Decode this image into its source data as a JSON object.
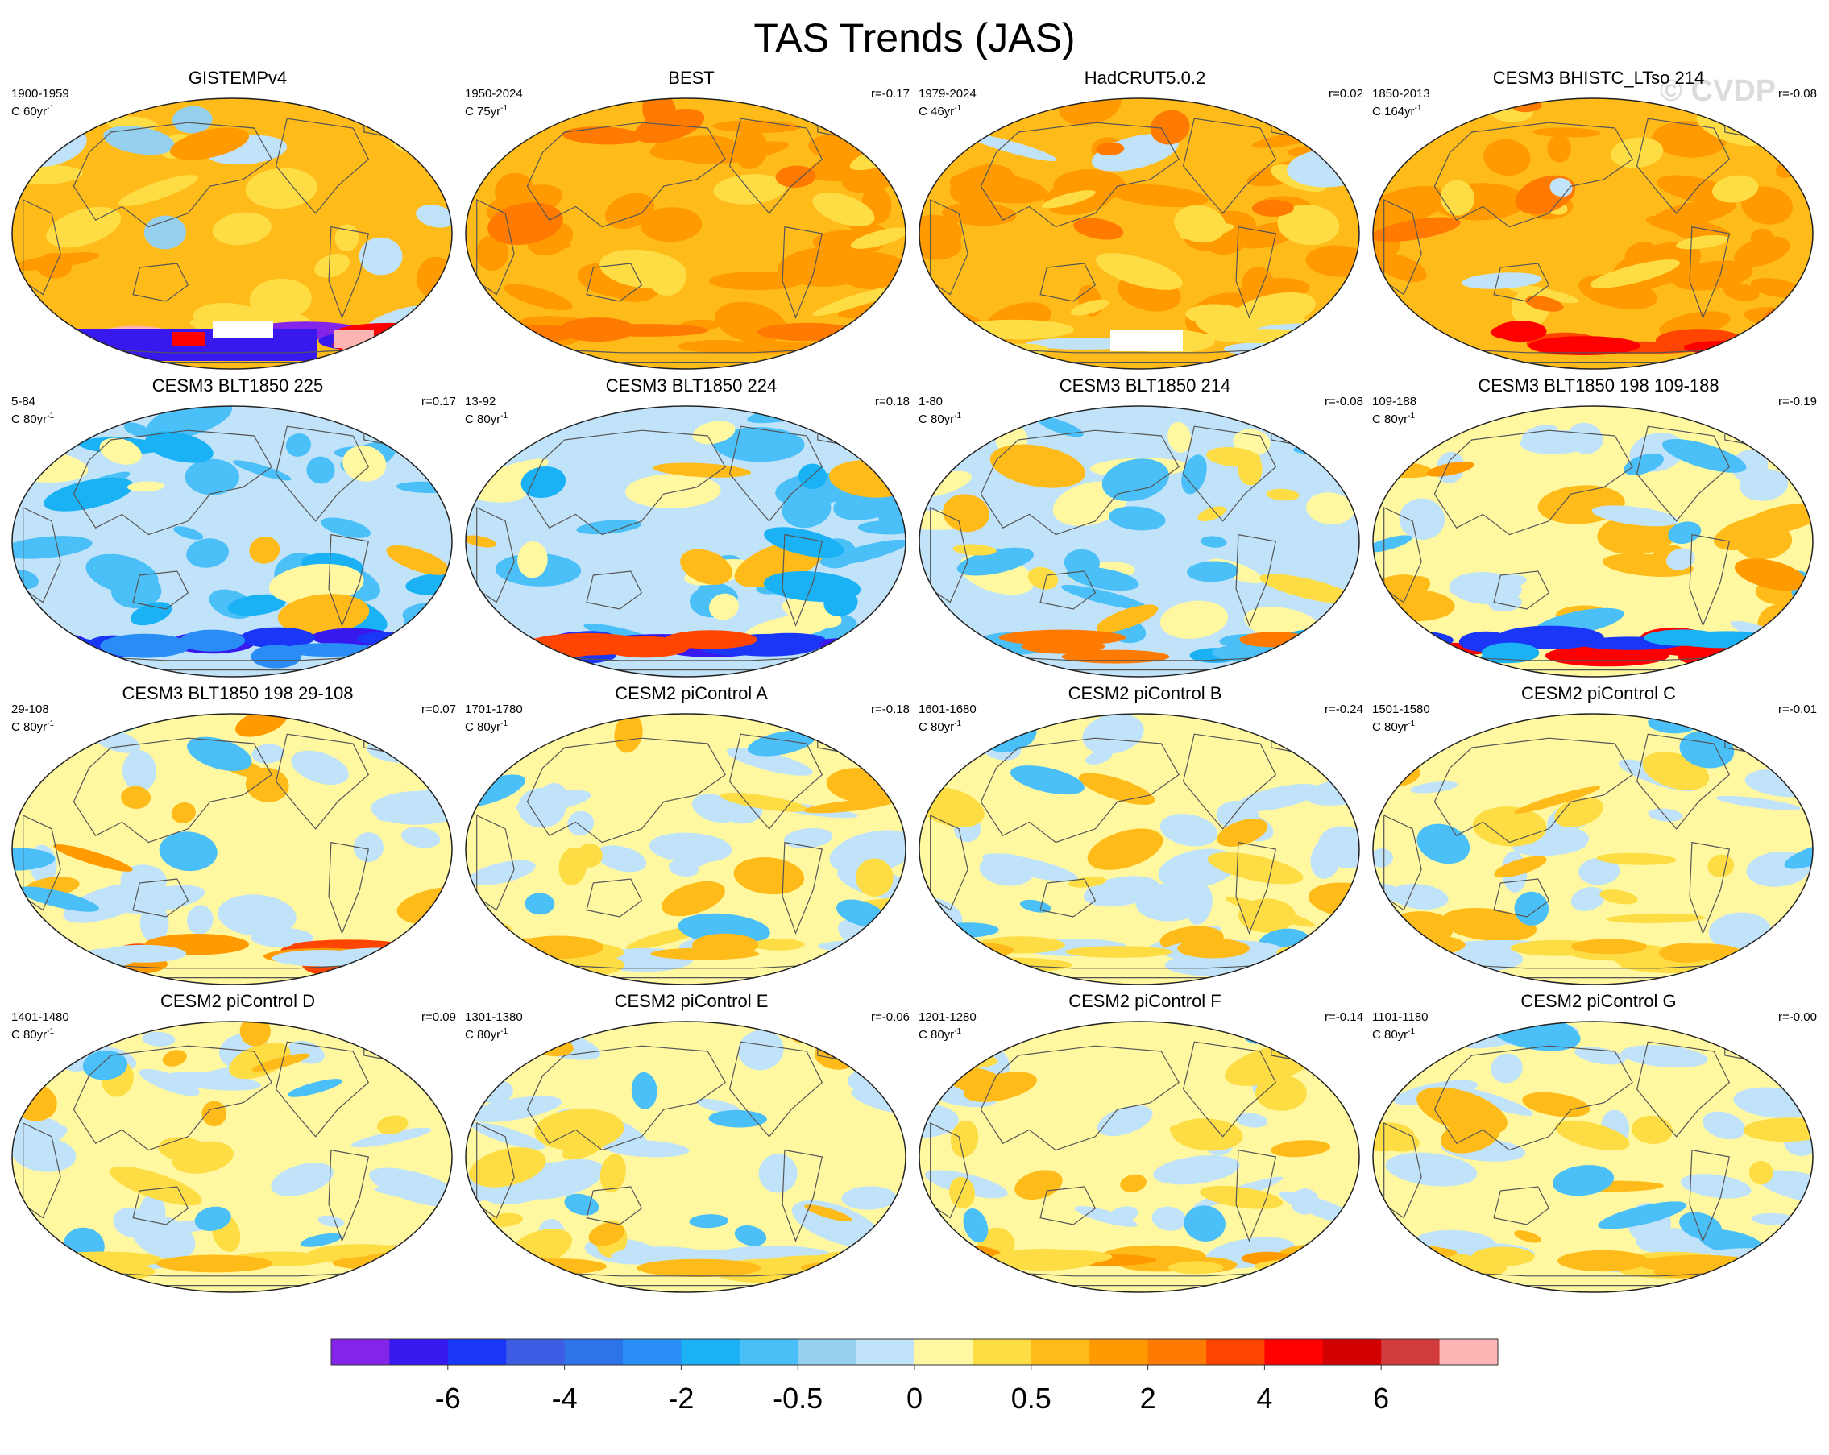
{
  "chart_data": {
    "type": "map-panels",
    "title": "TAS Trends (JAS)",
    "watermark": "© CVDP",
    "units_label": "C",
    "colorbar": {
      "colors": [
        "#8424e8",
        "#3719f0",
        "#1a37f7",
        "#3f5ce5",
        "#2d74e8",
        "#2a8df5",
        "#1ab2f5",
        "#4bbff7",
        "#96d0ef",
        "#c0e3f9",
        "#fff8a0",
        "#fedc44",
        "#ffbb1a",
        "#ff9a00",
        "#ff7a00",
        "#ff4500",
        "#ff0000",
        "#d20000",
        "#d23c3c",
        "#ffb4b4"
      ],
      "tick_labels": [
        "-6",
        "-4",
        "-2",
        "-0.5",
        "0",
        "0.5",
        "2",
        "4",
        "6"
      ]
    },
    "panels": [
      {
        "name": "GISTEMPv4",
        "period": "1900-1959",
        "trend_label": "C 60yr",
        "exponent": "-1",
        "r": "",
        "style": "orange-antarctic"
      },
      {
        "name": "BEST",
        "period": "1950-2024",
        "trend_label": "C 75yr",
        "exponent": "-1",
        "r": "r=-0.17",
        "style": "warm"
      },
      {
        "name": "HadCRUT5.0.2",
        "period": "1979-2024",
        "trend_label": "C 46yr",
        "exponent": "-1",
        "r": "r=0.02",
        "style": "warm-gap"
      },
      {
        "name": "CESM3 BHISTC_LTso 214",
        "period": "1850-2013",
        "trend_label": "C 164yr",
        "exponent": "-1",
        "r": "r=-0.08",
        "style": "warm-red-south"
      },
      {
        "name": "CESM3 BLT1850 225",
        "period": "5-84",
        "trend_label": "C 80yr",
        "exponent": "-1",
        "r": "r=0.17",
        "style": "cool"
      },
      {
        "name": "CESM3 BLT1850 224",
        "period": "13-92",
        "trend_label": "C 80yr",
        "exponent": "-1",
        "r": "r=0.18",
        "style": "cool-mixed"
      },
      {
        "name": "CESM3 BLT1850 214",
        "period": "1-80",
        "trend_label": "C 80yr",
        "exponent": "-1",
        "r": "r=-0.08",
        "style": "mixed-cool"
      },
      {
        "name": "CESM3 BLT1850 198 109-188",
        "period": "109-188",
        "trend_label": "C 80yr",
        "exponent": "-1",
        "r": "r=-0.19",
        "style": "warm-north-red-south"
      },
      {
        "name": "CESM3 BLT1850 198 29-108",
        "period": "29-108",
        "trend_label": "C 80yr",
        "exponent": "-1",
        "r": "r=0.07",
        "style": "mixed-red-south"
      },
      {
        "name": "CESM2 piControl A",
        "period": "1701-1780",
        "trend_label": "C 80yr",
        "exponent": "-1",
        "r": "r=-0.18",
        "style": "mixed"
      },
      {
        "name": "CESM2 piControl B",
        "period": "1601-1680",
        "trend_label": "C 80yr",
        "exponent": "-1",
        "r": "r=-0.24",
        "style": "mixed"
      },
      {
        "name": "CESM2 piControl C",
        "period": "1501-1580",
        "trend_label": "C 80yr",
        "exponent": "-1",
        "r": "r=-0.01",
        "style": "mixed"
      },
      {
        "name": "CESM2 piControl D",
        "period": "1401-1480",
        "trend_label": "C 80yr",
        "exponent": "-1",
        "r": "r=0.09",
        "style": "mixed"
      },
      {
        "name": "CESM2 piControl E",
        "period": "1301-1380",
        "trend_label": "C 80yr",
        "exponent": "-1",
        "r": "r=-0.06",
        "style": "mixed"
      },
      {
        "name": "CESM2 piControl F",
        "period": "1201-1280",
        "trend_label": "C 80yr",
        "exponent": "-1",
        "r": "r=-0.14",
        "style": "mixed-warm-south"
      },
      {
        "name": "CESM2 piControl G",
        "period": "1101-1180",
        "trend_label": "C 80yr",
        "exponent": "-1",
        "r": "r=-0.00",
        "style": "mixed"
      }
    ]
  }
}
